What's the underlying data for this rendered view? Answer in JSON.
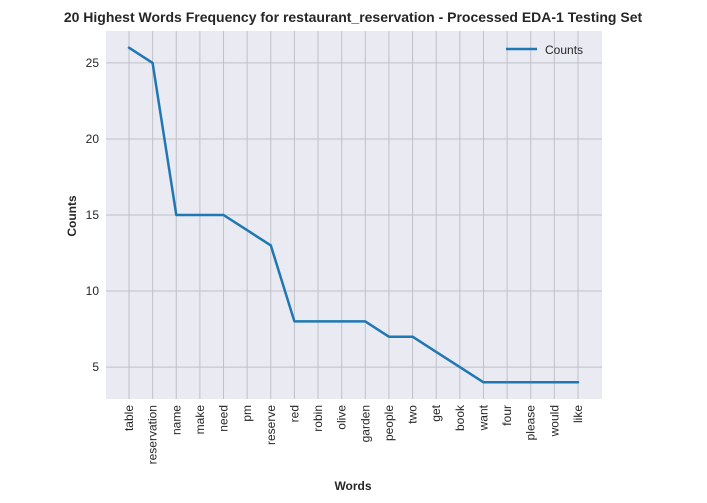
{
  "chart_data": {
    "type": "line",
    "title": "20 Highest Words Frequency for restaurant_reservation - Processed EDA-1 Testing Set",
    "xlabel": "Words",
    "ylabel": "Counts",
    "categories": [
      "table",
      "reservation",
      "name",
      "make",
      "need",
      "pm",
      "reserve",
      "red",
      "robin",
      "olive",
      "garden",
      "people",
      "two",
      "get",
      "book",
      "want",
      "four",
      "please",
      "would",
      "like"
    ],
    "series": [
      {
        "name": "Counts",
        "values": [
          26,
          25,
          15,
          15,
          15,
          14,
          13,
          8,
          8,
          8,
          8,
          7,
          7,
          6,
          5,
          4,
          4,
          4,
          4,
          4
        ]
      }
    ],
    "ylim": [
      2.9,
      27.1
    ],
    "yticks": [
      5,
      10,
      15,
      20,
      25
    ],
    "grid": true,
    "legend_position": "top-right",
    "colors": {
      "line": "#1f77b4",
      "plot_background": "#eaeaf2",
      "grid": "#c0c0c8",
      "text": "#262626"
    }
  }
}
